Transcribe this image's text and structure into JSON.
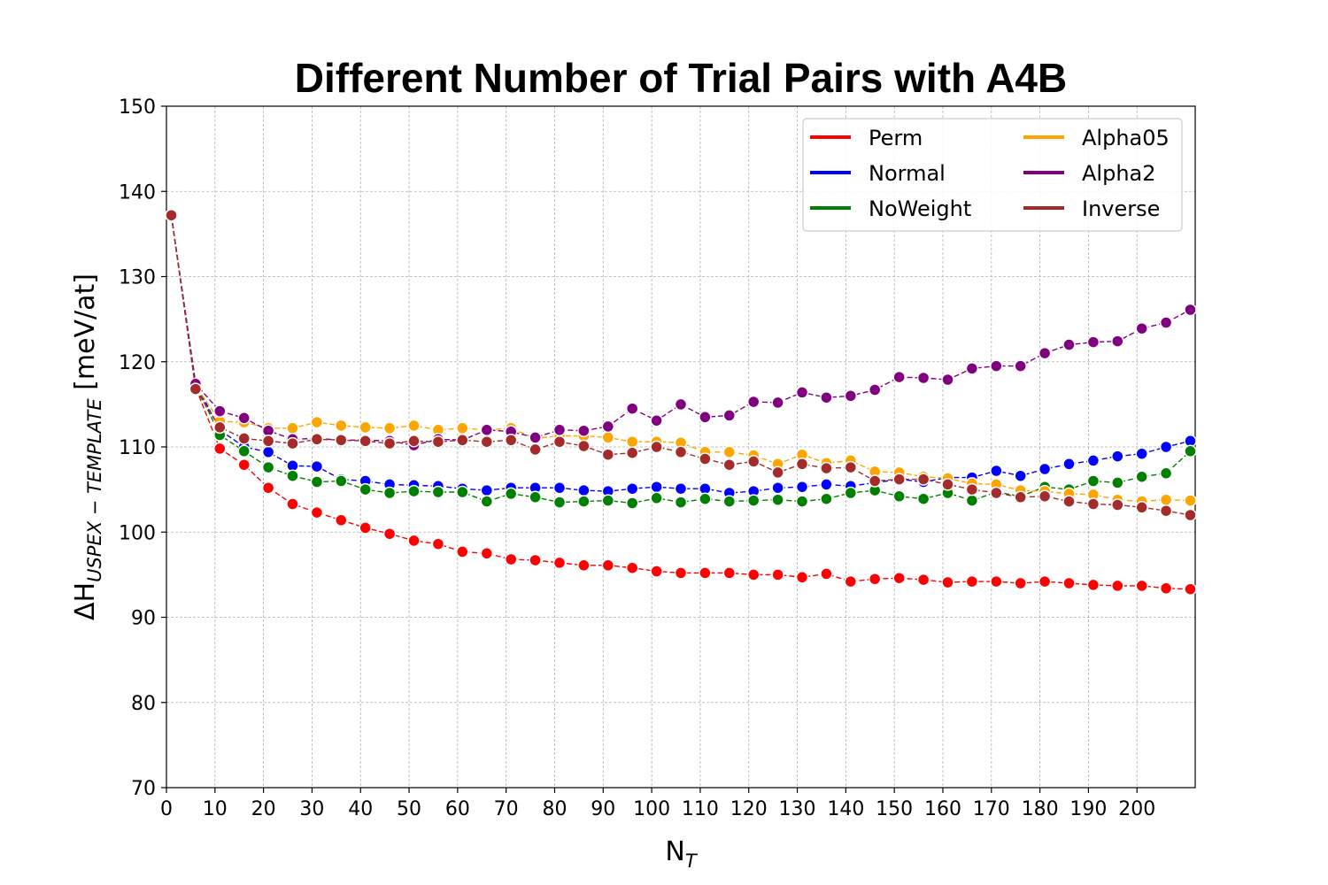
{
  "chart_data": {
    "type": "line",
    "title": "Different Number of Trial Pairs with A4B",
    "xlabel_main": "N",
    "xlabel_sub": "T",
    "ylabel_main": "ΔH",
    "ylabel_sub": "USPEX − TEMPLATE",
    "ylabel_unit": " [meV/at]",
    "xlim": [
      0,
      212
    ],
    "ylim": [
      70,
      150
    ],
    "xticks": [
      0,
      10,
      20,
      30,
      40,
      50,
      60,
      70,
      80,
      90,
      100,
      110,
      120,
      130,
      140,
      150,
      160,
      170,
      180,
      190,
      200
    ],
    "yticks": [
      70,
      80,
      90,
      100,
      110,
      120,
      130,
      140,
      150
    ],
    "grid": true,
    "legend_position": "top-right",
    "x": [
      1,
      6,
      11,
      16,
      21,
      26,
      31,
      36,
      41,
      46,
      51,
      56,
      61,
      66,
      71,
      76,
      81,
      86,
      91,
      96,
      101,
      106,
      111,
      116,
      121,
      126,
      131,
      136,
      141,
      146,
      151,
      156,
      161,
      166,
      171,
      176,
      181,
      186,
      191,
      196,
      201,
      206,
      211
    ],
    "series": [
      {
        "name": "Perm",
        "color": "#ff0000",
        "values": [
          137.2,
          117.0,
          109.8,
          107.9,
          105.2,
          103.3,
          102.3,
          101.4,
          100.5,
          99.8,
          99.0,
          98.6,
          97.7,
          97.5,
          96.8,
          96.7,
          96.4,
          96.1,
          96.1,
          95.8,
          95.4,
          95.2,
          95.2,
          95.2,
          95.0,
          95.0,
          94.7,
          95.1,
          94.2,
          94.5,
          94.6,
          94.4,
          94.1,
          94.2,
          94.2,
          94.0,
          94.2,
          94.0,
          93.8,
          93.7,
          93.7,
          93.4,
          93.3
        ]
      },
      {
        "name": "Normal",
        "color": "#0000ff",
        "values": [
          137.2,
          117.5,
          112.0,
          110.0,
          109.4,
          107.8,
          107.7,
          106.2,
          106.0,
          105.6,
          105.5,
          105.4,
          105.1,
          104.9,
          105.2,
          105.2,
          105.2,
          104.9,
          104.8,
          105.1,
          105.3,
          105.1,
          105.1,
          104.6,
          104.8,
          105.2,
          105.3,
          105.6,
          105.4,
          105.8,
          106.2,
          105.9,
          106.4,
          106.4,
          107.2,
          106.6,
          107.4,
          108.0,
          108.4,
          108.9,
          109.2,
          110.0,
          110.7
        ]
      },
      {
        "name": "NoWeight",
        "color": "#008000",
        "values": [
          137.2,
          117.3,
          111.4,
          109.5,
          107.6,
          106.6,
          105.9,
          106.0,
          105.0,
          104.6,
          104.8,
          104.7,
          104.7,
          103.6,
          104.5,
          104.1,
          103.5,
          103.6,
          103.7,
          103.4,
          104.0,
          103.5,
          103.9,
          103.6,
          103.7,
          103.8,
          103.6,
          103.9,
          104.6,
          104.9,
          104.2,
          103.9,
          104.6,
          103.7,
          104.7,
          104.2,
          105.3,
          105.0,
          106.0,
          105.8,
          106.5,
          106.9,
          109.5
        ]
      },
      {
        "name": "Alpha05",
        "color": "#ffa500",
        "values": [
          137.2,
          117.2,
          113.0,
          112.9,
          112.2,
          112.2,
          112.9,
          112.5,
          112.3,
          112.2,
          112.5,
          112.0,
          112.2,
          112.0,
          112.2,
          111.0,
          111.3,
          111.3,
          111.1,
          110.6,
          110.6,
          110.5,
          109.4,
          109.4,
          109.0,
          108.0,
          109.1,
          108.1,
          108.4,
          107.1,
          107.0,
          106.5,
          106.3,
          105.7,
          105.6,
          104.9,
          104.8,
          104.5,
          104.4,
          103.8,
          103.6,
          103.8,
          103.7
        ]
      },
      {
        "name": "Alpha2",
        "color": "#800080",
        "values": [
          137.2,
          117.4,
          114.2,
          113.4,
          111.9,
          110.9,
          111.0,
          110.8,
          110.8,
          110.7,
          110.2,
          110.9,
          110.8,
          112.0,
          111.8,
          111.1,
          112.0,
          111.9,
          112.4,
          114.5,
          113.1,
          115.0,
          113.5,
          113.7,
          115.3,
          115.2,
          116.4,
          115.8,
          116.0,
          116.7,
          118.2,
          118.1,
          117.9,
          119.2,
          119.5,
          119.5,
          121.0,
          122.0,
          122.3,
          122.4,
          123.9,
          124.6,
          126.1
        ]
      },
      {
        "name": "Inverse",
        "color": "#a52a2a",
        "values": [
          137.2,
          116.8,
          112.3,
          111.0,
          110.7,
          110.4,
          110.9,
          110.8,
          110.7,
          110.4,
          110.7,
          110.6,
          110.8,
          110.6,
          110.8,
          109.7,
          110.6,
          110.1,
          109.1,
          109.3,
          110.0,
          109.4,
          108.6,
          107.9,
          108.3,
          107.0,
          108.0,
          107.5,
          107.6,
          106.0,
          106.2,
          106.2,
          105.6,
          105.0,
          104.6,
          104.1,
          104.2,
          103.6,
          103.3,
          103.2,
          102.9,
          102.5,
          102.0
        ]
      }
    ]
  }
}
